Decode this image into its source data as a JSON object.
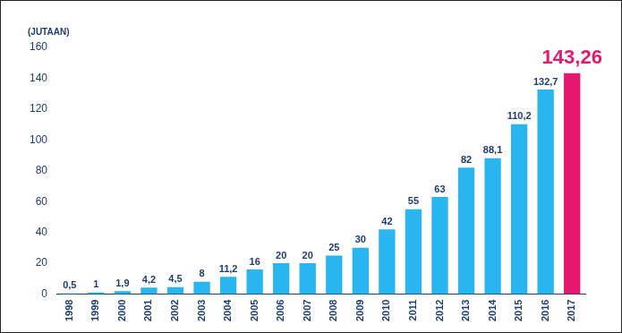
{
  "chart_data": {
    "type": "bar",
    "y_label": "(JUTAAN)",
    "categories": [
      "1998",
      "1999",
      "2000",
      "2001",
      "2002",
      "2003",
      "2004",
      "2005",
      "2006",
      "2007",
      "2008",
      "2009",
      "2010",
      "2011",
      "2012",
      "2013",
      "2014",
      "2015",
      "2016",
      "2017"
    ],
    "values": [
      0.5,
      1,
      1.9,
      4.2,
      4.5,
      8,
      11.2,
      16,
      20,
      20,
      25,
      30,
      42,
      55,
      63,
      82,
      88.1,
      110.2,
      132.7,
      143.26
    ],
    "value_labels": [
      "0,5",
      "1",
      "1,9",
      "4,2",
      "4,5",
      "8",
      "11,2",
      "16",
      "20",
      "20",
      "25",
      "30",
      "42",
      "55",
      "63",
      "82",
      "88,1",
      "110,2",
      "132,7",
      "143,26"
    ],
    "colors": [
      "#29b5ef",
      "#29b5ef",
      "#29b5ef",
      "#29b5ef",
      "#29b5ef",
      "#29b5ef",
      "#29b5ef",
      "#29b5ef",
      "#29b5ef",
      "#29b5ef",
      "#29b5ef",
      "#29b5ef",
      "#29b5ef",
      "#29b5ef",
      "#29b5ef",
      "#29b5ef",
      "#29b5ef",
      "#29b5ef",
      "#29b5ef",
      "#e5186f"
    ],
    "ylim": [
      0,
      160
    ],
    "yticks": [
      0,
      20,
      40,
      60,
      80,
      100,
      120,
      140,
      160
    ],
    "grid": false,
    "data_labels": true
  }
}
